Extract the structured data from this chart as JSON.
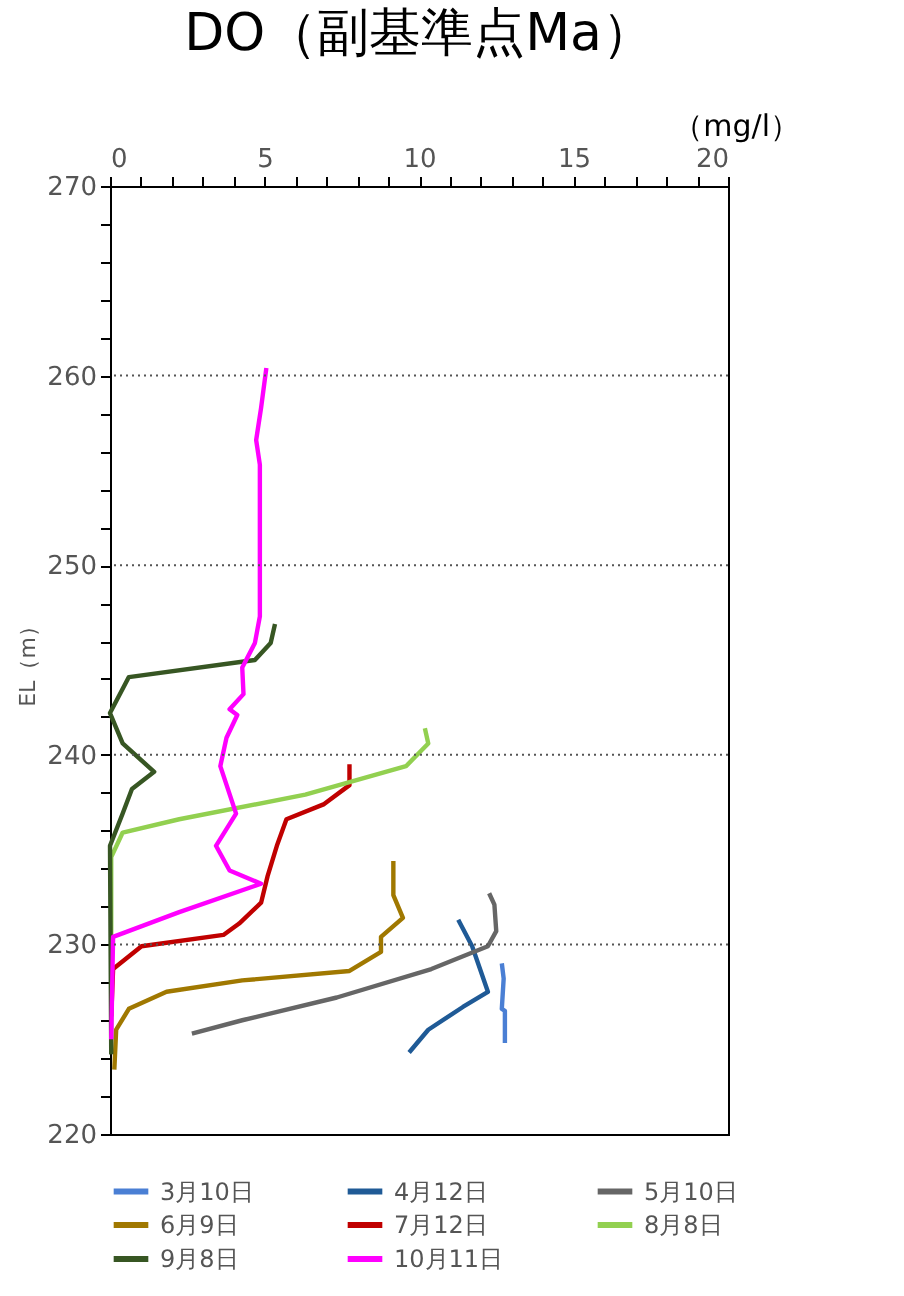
{
  "chart_data": {
    "type": "line",
    "title": "DO（副基準点Ma）",
    "xlabel": "（mg/l）",
    "ylabel": "EL（m）",
    "xlim": [
      0,
      20
    ],
    "ylim": [
      220,
      270
    ],
    "xticks": [
      0,
      {
        "value": 1,
        "label": null
      },
      {
        "value": 2,
        "label": null
      },
      {
        "value": 3,
        "label": null
      },
      {
        "value": 4,
        "label": null
      },
      5,
      {
        "value": 6,
        "label": null
      },
      {
        "value": 7,
        "label": null
      },
      {
        "value": 8,
        "label": null
      },
      {
        "value": 9,
        "label": null
      },
      10,
      {
        "value": 11,
        "label": null
      },
      {
        "value": 12,
        "label": null
      },
      {
        "value": 13,
        "label": null
      },
      {
        "value": 14,
        "label": null
      },
      15,
      {
        "value": 16,
        "label": null
      },
      {
        "value": 17,
        "label": null
      },
      {
        "value": 18,
        "label": null
      },
      {
        "value": 19,
        "label": null
      },
      20
    ],
    "yticks": [
      220,
      {
        "value": 222,
        "label": null
      },
      {
        "value": 224,
        "label": null
      },
      {
        "value": 226,
        "label": null
      },
      {
        "value": 228,
        "label": null
      },
      230,
      {
        "value": 232,
        "label": null
      },
      {
        "value": 234,
        "label": null
      },
      {
        "value": 236,
        "label": null
      },
      {
        "value": 238,
        "label": null
      },
      240,
      {
        "value": 242,
        "label": null
      },
      {
        "value": 244,
        "label": null
      },
      {
        "value": 246,
        "label": null
      },
      {
        "value": 248,
        "label": null
      },
      250,
      {
        "value": 252,
        "label": null
      },
      {
        "value": 254,
        "label": null
      },
      {
        "value": 256,
        "label": null
      },
      {
        "value": 258,
        "label": null
      },
      260,
      {
        "value": 262,
        "label": null
      },
      {
        "value": 264,
        "label": null
      },
      {
        "value": 266,
        "label": null
      },
      {
        "value": 268,
        "label": null
      },
      270
    ],
    "grid": "y",
    "legend": "bottom",
    "marker": "none",
    "line_style": "solid",
    "series": [
      {
        "name": "3月10日",
        "color": "#4a7fd4",
        "x": [
          12.68,
          12.74,
          12.68,
          12.78,
          12.78
        ],
        "values": [
          229.0,
          228.2,
          226.6,
          226.5,
          224.8
        ]
      },
      {
        "name": "4月12日",
        "color": "#1f5a96",
        "x": [
          11.27,
          11.72,
          12.23,
          11.42,
          10.3,
          9.68
        ],
        "values": [
          231.3,
          229.9,
          227.5,
          226.7,
          225.5,
          224.3
        ]
      },
      {
        "name": "5月10日",
        "color": "#666666",
        "x": [
          12.27,
          12.44,
          12.5,
          12.23,
          10.4,
          7.34,
          4.28,
          2.65
        ],
        "values": [
          232.7,
          232.1,
          230.7,
          229.9,
          228.7,
          227.2,
          226.0,
          225.3
        ]
      },
      {
        "name": "6月9日",
        "color": "#a07800",
        "x": [
          9.17,
          9.17,
          9.48,
          8.77,
          8.77,
          7.75,
          4.28,
          1.83,
          0.61,
          0.2,
          0.14
        ],
        "values": [
          234.4,
          232.6,
          231.4,
          230.4,
          229.6,
          228.6,
          228.1,
          227.5,
          226.6,
          225.5,
          223.4
        ]
      },
      {
        "name": "7月12日",
        "color": "#c00000",
        "x": [
          7.75,
          7.75,
          6.93,
          5.71,
          5.4,
          5.1,
          4.89,
          4.18,
          3.67,
          1.02,
          0.1,
          0.04
        ],
        "values": [
          239.5,
          238.4,
          237.4,
          236.6,
          235.2,
          233.6,
          232.2,
          231.1,
          230.5,
          229.9,
          228.7,
          226.2
        ]
      },
      {
        "name": "8月8日",
        "color": "#92d050",
        "x": [
          10.19,
          10.3,
          9.58,
          6.32,
          2.24,
          0.41,
          0.04,
          0.04
        ],
        "values": [
          241.4,
          240.6,
          239.4,
          237.9,
          236.6,
          235.9,
          234.6,
          230.2
        ]
      },
      {
        "name": "9月8日",
        "color": "#375623",
        "x": [
          5.34,
          5.2,
          4.69,
          0.61,
          0.0,
          0.41,
          1.43,
          0.71,
          0.41,
          0.0,
          0.04
        ],
        "values": [
          246.9,
          245.9,
          245.0,
          244.1,
          242.2,
          240.6,
          239.1,
          238.2,
          236.9,
          235.2,
          224.2
        ]
      },
      {
        "name": "10月11日",
        "color": "#ff00ff",
        "x": [
          5.06,
          4.89,
          4.73,
          4.85,
          4.85,
          4.69,
          4.28,
          4.32,
          3.87,
          4.12,
          3.77,
          3.57,
          4.08,
          3.43,
          3.87,
          4.89,
          2.24,
          0.1,
          0.04
        ],
        "values": [
          260.4,
          258.3,
          256.6,
          255.3,
          247.3,
          245.9,
          244.6,
          243.2,
          242.4,
          242.1,
          240.9,
          239.4,
          236.9,
          235.2,
          233.9,
          233.2,
          231.7,
          230.4,
          225.0
        ]
      }
    ]
  }
}
